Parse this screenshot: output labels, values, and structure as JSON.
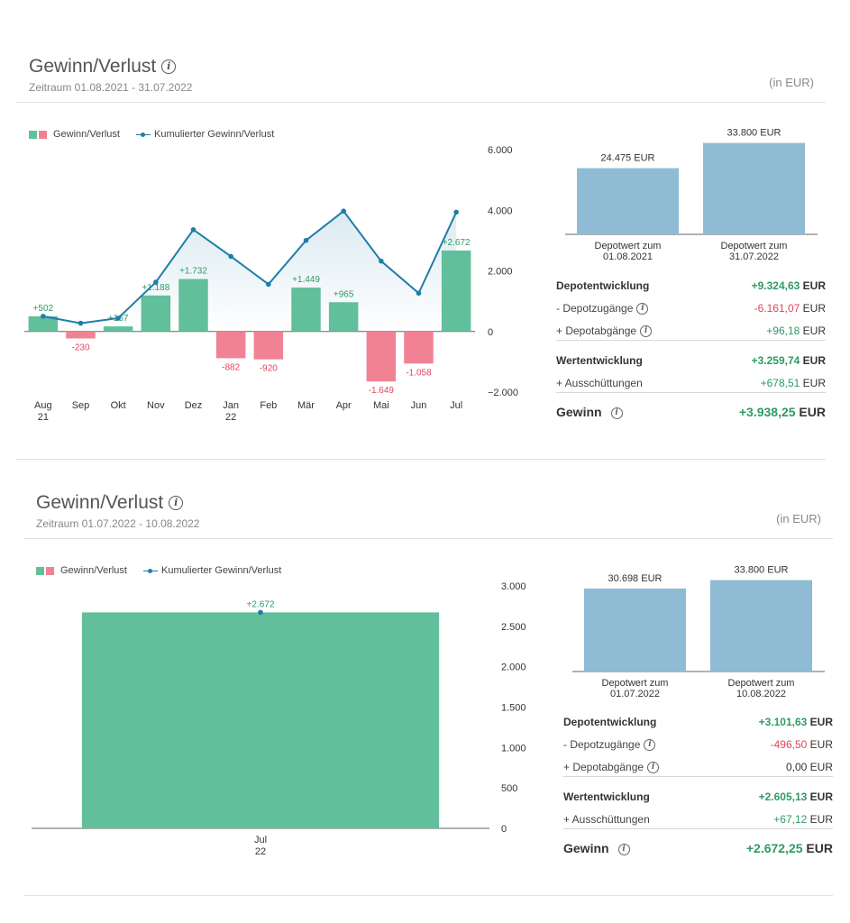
{
  "section1": {
    "title": "Gewinn/Verlust",
    "period": "Zeitraum 01.08.2021 - 31.07.2022",
    "unit": "(in EUR)",
    "legend_bars": "Gewinn/Verlust",
    "legend_line": "Kumulierter Gewinn/Verlust",
    "depot_bars": {
      "values": [
        24475,
        33800
      ],
      "value_labels": [
        "24.475 EUR",
        "33.800 EUR"
      ],
      "captions": [
        [
          "Depotwert zum",
          "01.08.2021"
        ],
        [
          "Depotwert zum",
          "31.07.2022"
        ]
      ]
    },
    "summary": [
      {
        "label": "Depotentwicklung",
        "value": "+9.324,63",
        "currency": "EUR",
        "kind": "pos",
        "bold": true,
        "info": false
      },
      {
        "label": "- Depotzugänge",
        "value": "-6.161,07",
        "currency": "EUR",
        "kind": "neg",
        "bold": false,
        "info": true
      },
      {
        "label": "+ Depotabgänge",
        "value": "+96,18",
        "currency": "EUR",
        "kind": "pos",
        "bold": false,
        "info": true
      },
      {
        "label": "Wertentwicklung",
        "value": "+3.259,74",
        "currency": "EUR",
        "kind": "pos",
        "bold": true,
        "info": false
      },
      {
        "label": "+ Ausschüttungen",
        "value": "+678,51",
        "currency": "EUR",
        "kind": "pos",
        "bold": false,
        "info": false
      },
      {
        "label": "Gewinn",
        "value": "+3.938,25",
        "currency": "EUR",
        "kind": "pos",
        "bold": true,
        "info": true,
        "big": true
      }
    ]
  },
  "section2": {
    "title": "Gewinn/Verlust",
    "period": "Zeitraum 01.07.2022 - 10.08.2022",
    "unit": "(in EUR)",
    "legend_bars": "Gewinn/Verlust",
    "legend_line": "Kumulierter Gewinn/Verlust",
    "depot_bars": {
      "values": [
        30698,
        33800
      ],
      "value_labels": [
        "30.698 EUR",
        "33.800 EUR"
      ],
      "captions": [
        [
          "Depotwert zum",
          "01.07.2022"
        ],
        [
          "Depotwert zum",
          "10.08.2022"
        ]
      ]
    },
    "summary": [
      {
        "label": "Depotentwicklung",
        "value": "+3.101,63",
        "currency": "EUR",
        "kind": "pos",
        "bold": true,
        "info": false
      },
      {
        "label": "- Depotzugänge",
        "value": "-496,50",
        "currency": "EUR",
        "kind": "neg",
        "bold": false,
        "info": true
      },
      {
        "label": "+ Depotabgänge",
        "value": "0,00",
        "currency": "EUR",
        "kind": "neutral",
        "bold": false,
        "info": true
      },
      {
        "label": "Wertentwicklung",
        "value": "+2.605,13",
        "currency": "EUR",
        "kind": "pos",
        "bold": true,
        "info": false
      },
      {
        "label": "+ Ausschüttungen",
        "value": "+67,12",
        "currency": "EUR",
        "kind": "pos",
        "bold": false,
        "info": false
      },
      {
        "label": "Gewinn",
        "value": "+2.672,25",
        "currency": "EUR",
        "kind": "pos",
        "bold": true,
        "info": true,
        "big": true
      }
    ]
  },
  "colors": {
    "positive": "#62bf9c",
    "negative": "#f08293",
    "line": "#1f7ea8",
    "depot_bar": "#8fbcd4",
    "positive_text": "#2e9a66",
    "negative_text": "#e0445c"
  },
  "chart_data": [
    {
      "type": "bar",
      "categories": [
        "Aug\n21",
        "Sep",
        "Okt",
        "Nov",
        "Dez",
        "Jan\n22",
        "Feb",
        "Mär",
        "Apr",
        "Mai",
        "Jun",
        "Jul"
      ],
      "series": [
        {
          "name": "Gewinn/Verlust",
          "type": "bar",
          "values": [
            502,
            -230,
            167,
            1188,
            1732,
            -882,
            -920,
            1449,
            965,
            -1649,
            -1058,
            2672
          ],
          "labels": [
            "+502",
            "-230",
            "+167",
            "+1.188",
            "+1.732",
            "-882",
            "-920",
            "+1.449",
            "+965",
            "-1.649",
            "-1.058",
            "+2.672"
          ]
        },
        {
          "name": "Kumulierter Gewinn/Verlust",
          "type": "line",
          "values": [
            502,
            272,
            439,
            1627,
            3359,
            2477,
            1557,
            3006,
            3971,
            2322,
            1264,
            3936
          ]
        }
      ],
      "yticks": [
        6000,
        4000,
        2000,
        0,
        -2000
      ],
      "ytick_labels": [
        "6.000",
        "4.000",
        "2.000",
        "0",
        "−2.000"
      ],
      "ylim": [
        -2000,
        6000
      ],
      "title": "",
      "xlabel": "",
      "ylabel": ""
    },
    {
      "type": "bar",
      "categories": [
        "Jul\n22"
      ],
      "series": [
        {
          "name": "Gewinn/Verlust",
          "type": "bar",
          "values": [
            2672
          ],
          "labels": [
            "+2.672"
          ]
        },
        {
          "name": "Kumulierter Gewinn/Verlust",
          "type": "line",
          "values": [
            2672
          ]
        }
      ],
      "yticks": [
        3000,
        2500,
        2000,
        1500,
        1000,
        500,
        0
      ],
      "ytick_labels": [
        "3.000",
        "2.500",
        "2.000",
        "1.500",
        "1.000",
        "500",
        "0"
      ],
      "ylim": [
        0,
        3000
      ],
      "title": "",
      "xlabel": "",
      "ylabel": ""
    }
  ]
}
